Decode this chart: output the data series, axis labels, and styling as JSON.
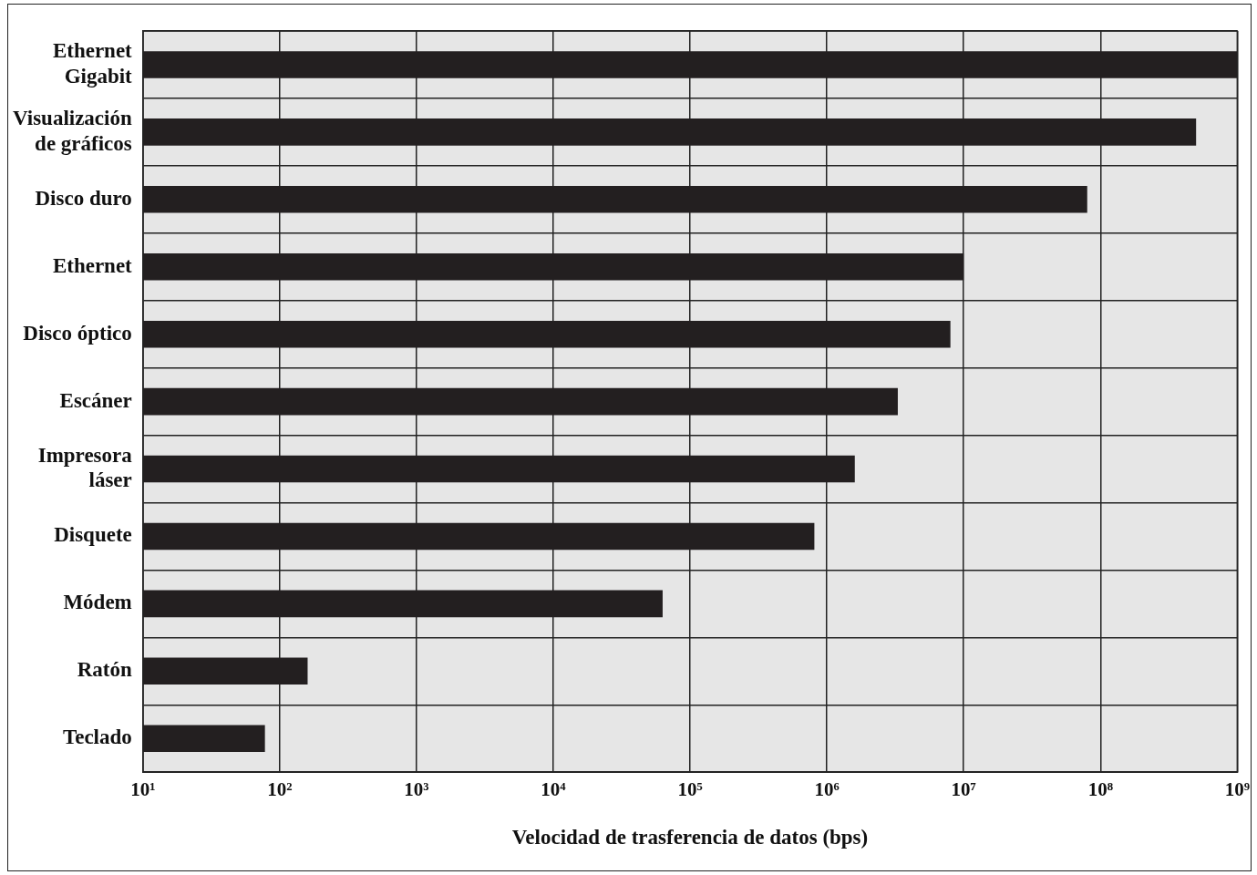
{
  "chart_data": {
    "type": "bar",
    "orientation": "horizontal",
    "log": "x",
    "xlabel": "Velocidad de trasferencia de datos (bps)",
    "categories": [
      "Ethernet Gigabit",
      "Visualización de gráficos",
      "Disco duro",
      "Ethernet",
      "Disco óptico",
      "Escáner",
      "Impresora láser",
      "Disquete",
      "Módem",
      "Ratón",
      "Teclado"
    ],
    "values": [
      1000000000,
      500000000,
      80000000,
      10000000,
      8000000,
      3300000,
      1600000,
      810000,
      63000,
      160,
      78
    ],
    "color": "#231f20",
    "xlim": [
      10,
      1000000000
    ],
    "xticks": [
      {
        "value": 10,
        "label": "10¹"
      },
      {
        "value": 100,
        "label": "10²"
      },
      {
        "value": 1000,
        "label": "10³"
      },
      {
        "value": 10000,
        "label": "10⁴"
      },
      {
        "value": 100000,
        "label": "10⁵"
      },
      {
        "value": 1000000,
        "label": "10⁶"
      },
      {
        "value": 10000000,
        "label": "10⁷"
      },
      {
        "value": 100000000,
        "label": "10⁸"
      },
      {
        "value": 1000000000,
        "label": "10⁹"
      }
    ],
    "grid": true,
    "legend": false
  }
}
